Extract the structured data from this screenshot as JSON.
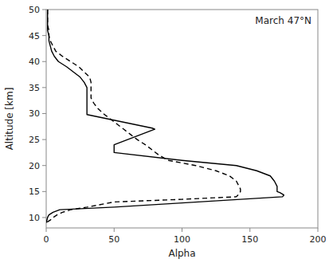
{
  "chart_data": {
    "type": "line",
    "title": "March 47°N",
    "xlabel": "Alpha",
    "ylabel": "Altitude [km]",
    "xlim": [
      0,
      200
    ],
    "ylim": [
      8,
      50
    ],
    "xticks": [
      0,
      50,
      100,
      150,
      200
    ],
    "yticks": [
      10,
      15,
      20,
      25,
      30,
      35,
      40,
      45,
      50
    ],
    "series": [
      {
        "color": "#000000",
        "line_style": "solid",
        "x": [
          1,
          1,
          1,
          1,
          1,
          2,
          2,
          3,
          4,
          6,
          9,
          15,
          20,
          25,
          28,
          30,
          30,
          30,
          30,
          30,
          30,
          30,
          30,
          30,
          30,
          78,
          80,
          78,
          50,
          50,
          50,
          50,
          100,
          140,
          155,
          165,
          168,
          170,
          170,
          170,
          172,
          174,
          175,
          174,
          50,
          10,
          5,
          2,
          1,
          0.5,
          0
        ],
        "values": [
          50,
          49,
          48,
          47,
          46,
          45,
          44,
          43,
          42,
          41,
          40,
          39,
          38,
          37,
          36,
          35,
          34.5,
          34,
          33,
          32,
          31,
          30.5,
          30.2,
          30,
          29.8,
          27.2,
          27.0,
          26.8,
          24.0,
          23.8,
          23.5,
          22.5,
          21,
          20,
          19,
          18,
          17,
          16,
          15.5,
          15,
          14.8,
          14.5,
          14.3,
          14.0,
          12,
          11.5,
          11.0,
          10.5,
          10,
          9.5,
          9.0
        ]
      },
      {
        "color": "#000000",
        "line_style": "dashed",
        "x": [
          1,
          1,
          1,
          1,
          2,
          2,
          3,
          5,
          7,
          12,
          18,
          24,
          28,
          32,
          33,
          33,
          33,
          33,
          35,
          38,
          42,
          47,
          52,
          57,
          62,
          67,
          73,
          78,
          83,
          90,
          110,
          125,
          135,
          140,
          142,
          143,
          143,
          142,
          140,
          100,
          50,
          30,
          18,
          12,
          8,
          5,
          3,
          0
        ],
        "values": [
          50,
          49,
          48,
          47,
          46,
          45,
          44,
          43,
          42,
          41,
          40,
          39,
          38,
          37,
          36,
          35,
          34,
          33,
          32,
          31,
          30,
          29,
          28,
          27,
          26,
          25,
          24,
          23,
          22,
          21,
          20,
          19,
          18,
          17,
          16,
          15.5,
          15,
          14.5,
          14,
          13.5,
          13,
          12,
          11.5,
          11,
          10.5,
          10,
          9.5,
          9.0
        ]
      }
    ]
  }
}
